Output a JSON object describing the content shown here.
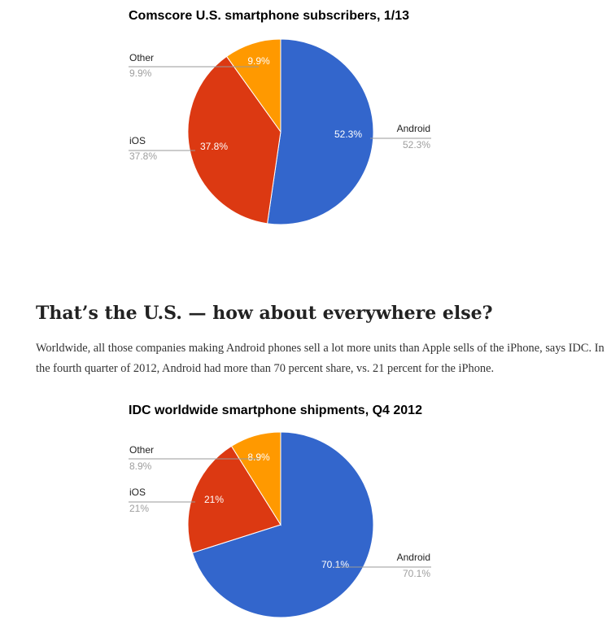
{
  "chart_data": [
    {
      "type": "pie",
      "title": "Comscore U.S. smartphone subscribers, 1/13",
      "legend": "labeled-lines",
      "slices": [
        {
          "label": "Android",
          "value": 52.3,
          "display": "52.3%",
          "color": "#3366cc"
        },
        {
          "label": "iOS",
          "value": 37.8,
          "display": "37.8%",
          "color": "#dc3912"
        },
        {
          "label": "Other",
          "value": 9.9,
          "display": "9.9%",
          "color": "#ff9900"
        }
      ]
    },
    {
      "type": "pie",
      "title": "IDC worldwide smartphone shipments, Q4 2012",
      "legend": "labeled-lines",
      "slices": [
        {
          "label": "Android",
          "value": 70.1,
          "display": "70.1%",
          "color": "#3366cc"
        },
        {
          "label": "iOS",
          "value": 21,
          "display": "21%",
          "color": "#dc3912"
        },
        {
          "label": "Other",
          "value": 8.9,
          "display": "8.9%",
          "color": "#ff9900"
        }
      ]
    }
  ],
  "article": {
    "heading": "That’s the U.S. — how about everywhere else?",
    "body": "Worldwide, all those companies making Android phones sell a lot more units than Apple sells of the iPhone, says IDC. In the fourth quarter of 2012, Android had more than 70 percent share, vs. 21 percent for the iPhone."
  }
}
